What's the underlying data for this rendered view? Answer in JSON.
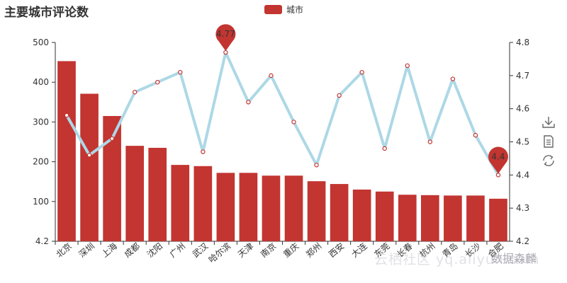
{
  "chart_data": {
    "type": "bar",
    "title": "主要城市评论数",
    "legend": [
      "城市"
    ],
    "categories": [
      "北京",
      "深圳",
      "上海",
      "成都",
      "沈阳",
      "广州",
      "武汉",
      "哈尔滨",
      "天津",
      "南京",
      "重庆",
      "郑州",
      "西安",
      "大连",
      "东莞",
      "长春",
      "杭州",
      "青岛",
      "长沙",
      "合肥"
    ],
    "series": [
      {
        "name": "城市",
        "type": "bar",
        "axis": "left",
        "values": [
          453,
          371,
          315,
          240,
          235,
          192,
          189,
          172,
          172,
          165,
          165,
          151,
          144,
          130,
          125,
          117,
          116,
          115,
          115,
          107
        ]
      },
      {
        "name": "",
        "type": "line",
        "axis": "right",
        "values": [
          4.58,
          4.46,
          4.51,
          4.65,
          4.68,
          4.71,
          4.47,
          4.77,
          4.62,
          4.7,
          4.56,
          4.43,
          4.64,
          4.71,
          4.48,
          4.73,
          4.5,
          4.69,
          4.52,
          4.4
        ]
      }
    ],
    "y_left": {
      "min": 0,
      "max": 500,
      "ticks": [
        100,
        200,
        300,
        400,
        500
      ],
      "min_label": "4.2"
    },
    "y_right": {
      "min": 4.2,
      "max": 4.8,
      "ticks": [
        "4.2",
        "4.3",
        "4.4",
        "4.5",
        "4.6",
        "4.7",
        "4.8"
      ]
    },
    "mark_points": [
      {
        "label": "4.77",
        "index": 7
      },
      {
        "label": "4.4",
        "index": 19
      }
    ],
    "colors": {
      "bar": "#c23531",
      "line": "#add8e6",
      "line_point": "#c23531",
      "axis": "#333333"
    }
  },
  "toolbox": {
    "icons": [
      "download-icon",
      "data-view-icon",
      "restore-icon"
    ]
  },
  "watermark": {
    "text": "云栖社区 yq.aliyun.com",
    "text2": "数据森麟"
  }
}
